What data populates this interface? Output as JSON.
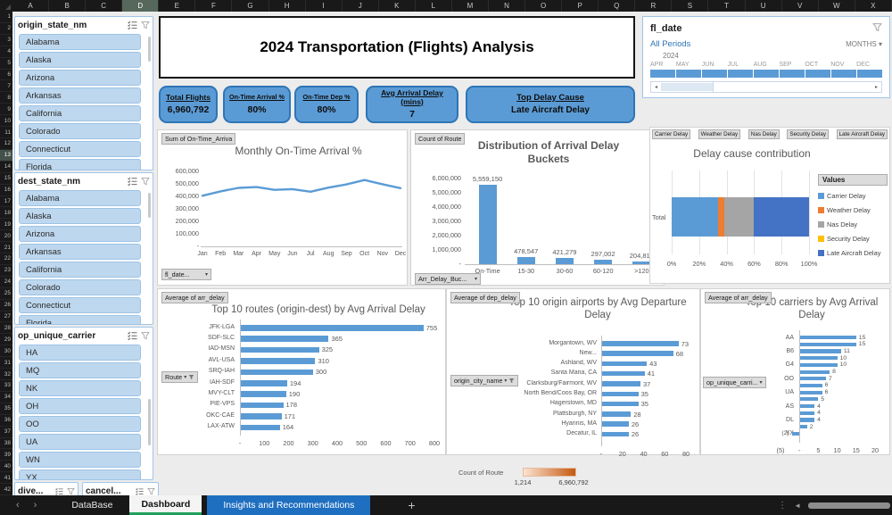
{
  "spreadsheet": {
    "columns": [
      "A",
      "B",
      "C",
      "D",
      "E",
      "F",
      "G",
      "H",
      "I",
      "J",
      "K",
      "L",
      "M",
      "N",
      "O",
      "P",
      "Q",
      "R",
      "S",
      "T",
      "U",
      "V",
      "W",
      "X"
    ],
    "selected_column": "D",
    "row_count": 42,
    "selected_row": 13
  },
  "icons": {
    "dropdown": "▾",
    "prev": "‹",
    "next": "›",
    "left": "◂",
    "right": "▸",
    "scroll_left": "◄",
    "more": "⋮",
    "add": "+"
  },
  "slicers": {
    "origin_state": {
      "title": "origin_state_nm",
      "items": [
        "Alabama",
        "Alaska",
        "Arizona",
        "Arkansas",
        "California",
        "Colorado",
        "Connecticut",
        "Florida"
      ]
    },
    "dest_state": {
      "title": "dest_state_nm",
      "items": [
        "Alabama",
        "Alaska",
        "Arizona",
        "Arkansas",
        "California",
        "Colorado",
        "Connecticut",
        "Florida"
      ]
    },
    "carrier": {
      "title": "op_unique_carrier",
      "items": [
        "HA",
        "MQ",
        "NK",
        "OH",
        "OO",
        "UA",
        "WN",
        "YX"
      ]
    },
    "mini": [
      {
        "title": "dive..."
      },
      {
        "title": "cancel..."
      }
    ]
  },
  "dashboard": {
    "title": "2024 Transportation (Flights) Analysis"
  },
  "kpis": [
    {
      "label": "Total Flights",
      "value": "6,960,792"
    },
    {
      "label": "On-Time Arrival %",
      "value": "80%"
    },
    {
      "label": "On-Time Dep %",
      "value": "80%"
    },
    {
      "label": "Avg Arrival Delay (mins)",
      "value": "7"
    },
    {
      "label": "Top Delay Cause",
      "value": "Late Aircraft Delay"
    }
  ],
  "timeline": {
    "title": "fl_date",
    "range_label": "All Periods",
    "granularity": "MONTHS",
    "year": "2024",
    "months": [
      "APR",
      "MAY",
      "JUN",
      "JUL",
      "AUG",
      "SEP",
      "OCT",
      "NOV",
      "DEC"
    ]
  },
  "color_scale": {
    "label": "Count of Route",
    "min": "1,214",
    "max": "6,960,792"
  },
  "sheet_tabs": {
    "tabs": [
      "DataBase",
      "Dashboard",
      "Insights and Recommendations"
    ],
    "active_tab": "Dashboard"
  },
  "chart_data": [
    {
      "id": "monthly_ontime",
      "type": "line",
      "title": "Monthly On-Time Arrival %",
      "field_button": "Sum of On-Time_Arriva",
      "axis_field_button": "fl_date...",
      "x": [
        "Jan",
        "Feb",
        "Mar",
        "Apr",
        "May",
        "Jun",
        "Jul",
        "Aug",
        "Sep",
        "Oct",
        "Nov",
        "Dec"
      ],
      "values": [
        405000,
        440000,
        468000,
        474000,
        452000,
        458000,
        437000,
        470000,
        496000,
        531000,
        497000,
        466000
      ],
      "ylim": [
        0,
        600000
      ],
      "yticks": [
        "600,000",
        "500,000",
        "400,000",
        "300,000",
        "200,000",
        "100,000",
        "-"
      ],
      "line_color": "#5B9BD5"
    },
    {
      "id": "delay_buckets",
      "type": "bar",
      "title": "Distribution of Arrival Delay Buckets",
      "field_button": "Count of Route",
      "axis_field_button": "Arr_Delay_Buc...",
      "categories": [
        "On-Time",
        "15-30",
        "30-60",
        "60-120",
        ">120"
      ],
      "values": [
        5559150,
        478547,
        421279,
        297002,
        204814
      ],
      "value_labels": [
        "5,559,150",
        "478,547",
        "421,279",
        "297,002",
        "204,814"
      ],
      "ylim": [
        0,
        6000000
      ],
      "yticks": [
        "6,000,000",
        "5,000,000",
        "4,000,000",
        "3,000,000",
        "2,000,000",
        "1,000,000",
        "-"
      ],
      "bar_color": "#5B9BD5"
    },
    {
      "id": "delay_cause",
      "type": "stacked_bar_h",
      "title": "Delay cause contribution",
      "field_buttons": [
        "Carrier Delay",
        "Weather Delay",
        "Nas Delay",
        "Security Delay",
        "Late Aircraft Delay"
      ],
      "category": "Total",
      "legend_title": "Values",
      "series": [
        {
          "name": "Carrier Delay",
          "pct": 33.8,
          "color": "#5B9BD5"
        },
        {
          "name": "Weather Delay",
          "pct": 4.8,
          "color": "#ED7D31"
        },
        {
          "name": "Nas Delay",
          "pct": 20.9,
          "color": "#A5A5A5"
        },
        {
          "name": "Security Delay",
          "pct": 0.5,
          "color": "#FFC000"
        },
        {
          "name": "Late Aircraft Delay",
          "pct": 40.0,
          "color": "#4472C4"
        }
      ],
      "xticks": [
        "0%",
        "20%",
        "40%",
        "60%",
        "80%",
        "100%"
      ]
    },
    {
      "id": "top_routes",
      "type": "bar_h",
      "title": "Top 10 routes (origin-dest) by Avg Arrival Delay",
      "field_button": "Average of arr_delay",
      "axis_field_button": "Route",
      "categories": [
        "JFK-LGA",
        "SDF-SLC",
        "IAD-MSN",
        "AVL-USA",
        "SRQ-IAH",
        "IAH-SDF",
        "MVY-CLT",
        "PIE-VPS",
        "OKC-CAE",
        "LAX-ATW"
      ],
      "values": [
        755,
        365,
        325,
        310,
        300,
        194,
        190,
        178,
        171,
        164
      ],
      "xlim": [
        0,
        800
      ],
      "xticks": [
        "-",
        "100",
        "200",
        "300",
        "400",
        "500",
        "600",
        "700",
        "800"
      ],
      "bar_color": "#5B9BD5"
    },
    {
      "id": "top_airports",
      "type": "bar_h",
      "title": "Top 10 origin airports by Avg Departure Delay",
      "field_button": "Average of dep_delay",
      "axis_field_button": "origin_city_name",
      "categories": [
        "Morgantown, WV",
        "New...",
        "Ashland, WV",
        "Santa Maria, CA",
        "Clarksburg/Fairmont, WV",
        "North Bend/Coos Bay, OR",
        "Hagerstown, MD",
        "Plattsburgh, NY",
        "Hyannis, MA",
        "Decatur, IL"
      ],
      "values": [
        73,
        68,
        43,
        41,
        37,
        35,
        35,
        28,
        26,
        26
      ],
      "xlim": [
        0,
        80
      ],
      "xticks": [
        "-",
        "20",
        "40",
        "60",
        "80"
      ],
      "bar_color": "#5B9BD5"
    },
    {
      "id": "top_carriers",
      "type": "bar_h",
      "title": "Top 10 carriers by Avg Arrival Delay",
      "field_button": "Average of arr_delay",
      "axis_field_button": "op_unique_carri...",
      "categories": [
        "AA",
        "",
        "B6",
        "",
        "G4",
        "",
        "OO",
        "",
        "UA",
        "",
        "AS",
        "",
        "DL",
        "",
        "YX"
      ],
      "values": [
        15,
        15,
        11,
        10,
        10,
        8,
        7,
        6,
        6,
        5,
        4,
        4,
        4,
        2,
        -2
      ],
      "value_labels": [
        "15",
        "15",
        "11",
        "10",
        "10",
        "8",
        "7",
        "6",
        "6",
        "5",
        "4",
        "4",
        "4",
        "2",
        "(2)"
      ],
      "xlim": [
        -5,
        20
      ],
      "xticks": [
        "(5)",
        "-",
        "5",
        "10",
        "15",
        "20"
      ],
      "bar_color": "#5B9BD5"
    }
  ]
}
